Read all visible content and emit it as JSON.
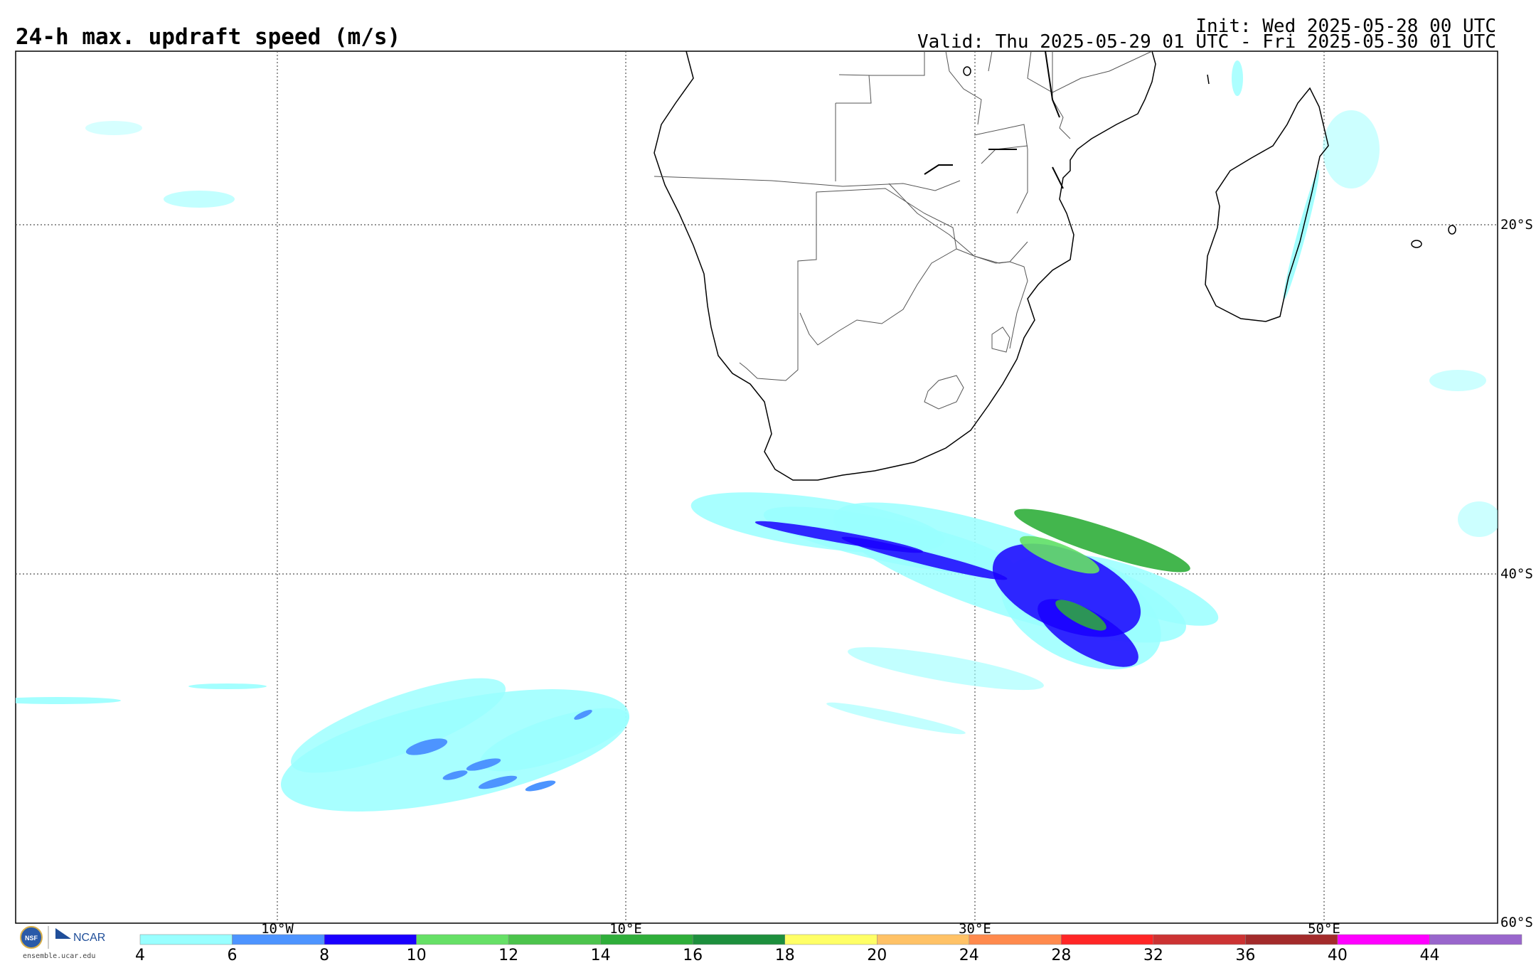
{
  "header": {
    "title": "24-h max. updraft speed (m/s)",
    "init": "Init: Wed 2025-05-28 00 UTC",
    "valid": "Valid: Thu 2025-05-29 01 UTC - Fri 2025-05-30 01 UTC"
  },
  "map": {
    "lon_labels": [
      "10°W",
      "10°E",
      "30°E",
      "50°E"
    ],
    "lat_labels": [
      "20°S",
      "40°S",
      "60°S"
    ],
    "projection_extent": {
      "lon": [
        -25,
        60
      ],
      "lat": [
        -60,
        -10
      ]
    }
  },
  "colorbar": {
    "ticks": [
      "4",
      "6",
      "8",
      "10",
      "12",
      "14",
      "16",
      "18",
      "20",
      "24",
      "28",
      "32",
      "36",
      "40",
      "44"
    ],
    "colors": [
      "#99ffff",
      "#4d94ff",
      "#1a00ff",
      "#66e066",
      "#4cc44c",
      "#2fae3a",
      "#1d8f3d",
      "#ffff66",
      "#ffc266",
      "#ff8a4d",
      "#ff2626",
      "#cc3333",
      "#a32b2b",
      "#ff00ff",
      "#9966cc"
    ]
  },
  "logos": {
    "url_text": "ensemble.ucar.edu",
    "ncar_text": "NCAR",
    "nsf_text": "NSF"
  }
}
